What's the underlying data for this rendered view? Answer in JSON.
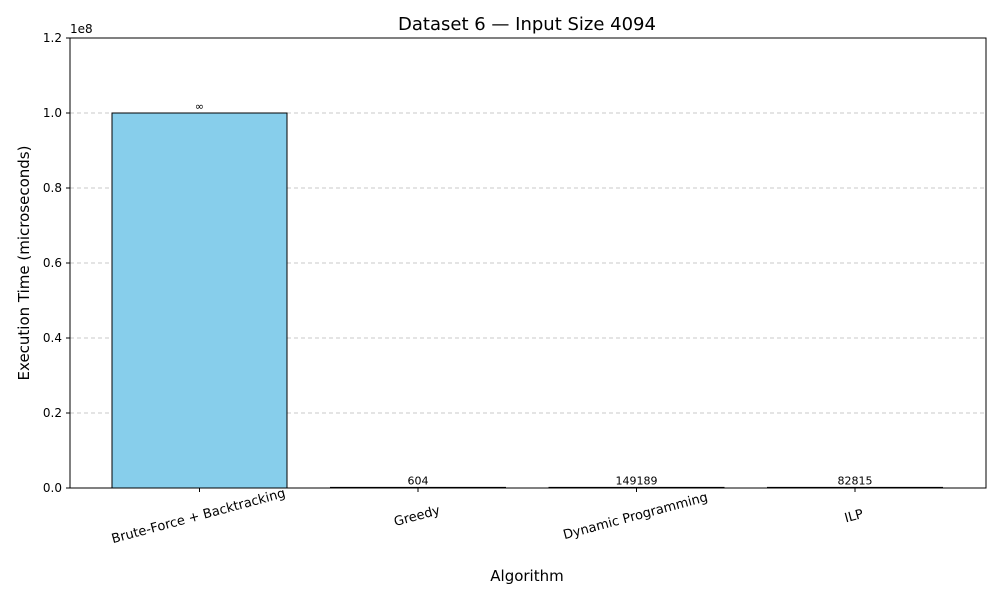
{
  "chart_data": {
    "type": "bar",
    "title": "Dataset 6 — Input Size 4094",
    "xlabel": "Algorithm",
    "ylabel": "Execution Time (microseconds)",
    "y_offset_label": "1e8",
    "y_scale": 100000000,
    "ylim": [
      0,
      120000000
    ],
    "y_ticks": [
      0,
      20000000,
      40000000,
      60000000,
      80000000,
      100000000,
      120000000
    ],
    "y_tick_labels": [
      "0.0",
      "0.2",
      "0.4",
      "0.6",
      "0.8",
      "1.0",
      "1.2"
    ],
    "categories": [
      "Brute-Force + Backtracking",
      "Greedy",
      "Dynamic Programming",
      "ILP"
    ],
    "values": [
      100000000,
      604,
      149189,
      82815
    ],
    "data_labels": [
      "∞",
      "604",
      "149189",
      "82815"
    ],
    "bar_color": "#87ceeb",
    "bar_edge_color": "#000000",
    "grid": "y-dashed",
    "legend": "none"
  }
}
